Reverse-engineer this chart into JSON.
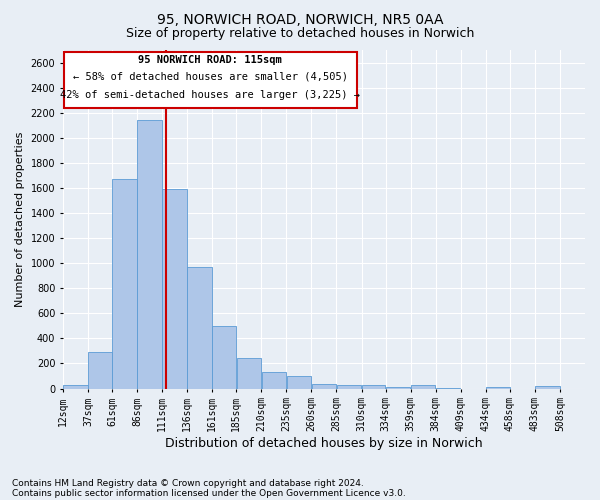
{
  "title": "95, NORWICH ROAD, NORWICH, NR5 0AA",
  "subtitle": "Size of property relative to detached houses in Norwich",
  "xlabel": "Distribution of detached houses by size in Norwich",
  "ylabel": "Number of detached properties",
  "footnote1": "Contains HM Land Registry data © Crown copyright and database right 2024.",
  "footnote2": "Contains public sector information licensed under the Open Government Licence v3.0.",
  "annotation_line1": "95 NORWICH ROAD: 115sqm",
  "annotation_line2": "← 58% of detached houses are smaller (4,505)",
  "annotation_line3": "42% of semi-detached houses are larger (3,225) →",
  "bar_left_edges": [
    12,
    37,
    61,
    86,
    111,
    136,
    161,
    185,
    210,
    235,
    260,
    285,
    310,
    334,
    359,
    384,
    409,
    434,
    458,
    483
  ],
  "bar_widths": [
    25,
    24,
    25,
    25,
    25,
    25,
    24,
    25,
    25,
    25,
    25,
    25,
    24,
    25,
    25,
    25,
    25,
    24,
    25,
    25
  ],
  "bar_heights": [
    25,
    295,
    1670,
    2140,
    1595,
    970,
    500,
    245,
    130,
    100,
    40,
    30,
    25,
    10,
    25,
    5,
    0,
    10,
    0,
    20
  ],
  "tick_labels": [
    "12sqm",
    "37sqm",
    "61sqm",
    "86sqm",
    "111sqm",
    "136sqm",
    "161sqm",
    "185sqm",
    "210sqm",
    "235sqm",
    "260sqm",
    "285sqm",
    "310sqm",
    "334sqm",
    "359sqm",
    "384sqm",
    "409sqm",
    "434sqm",
    "458sqm",
    "483sqm",
    "508sqm"
  ],
  "bar_color": "#aec6e8",
  "bar_edge_color": "#5b9bd5",
  "vline_color": "#cc0000",
  "vline_x": 115,
  "annotation_box_color": "#cc0000",
  "background_color": "#e8eef5",
  "ylim": [
    0,
    2700
  ],
  "xlim": [
    12,
    533
  ],
  "grid_color": "#ffffff",
  "title_fontsize": 10,
  "subtitle_fontsize": 9,
  "ylabel_fontsize": 8,
  "xlabel_fontsize": 9,
  "tick_fontsize": 7,
  "footnote_fontsize": 6.5,
  "ann_fontsize": 7.5
}
